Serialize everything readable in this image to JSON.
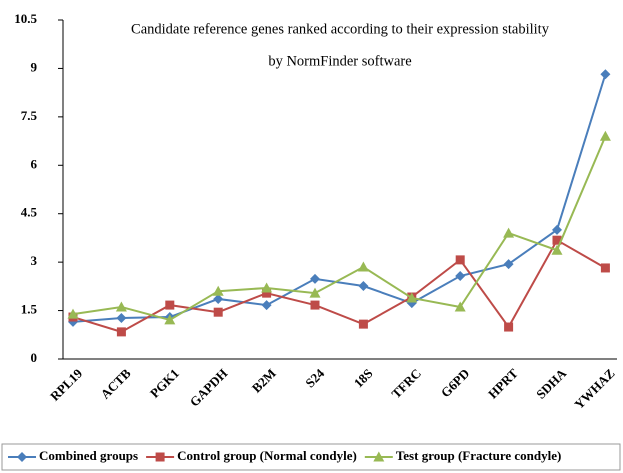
{
  "chart_data": {
    "type": "line",
    "title": [
      "Candidate reference genes ranked according to their expression stability",
      "by NormFinder software"
    ],
    "categories": [
      "RPL19",
      "ACTB",
      "PGK1",
      "GAPDH",
      "B2M",
      "S24",
      "18S",
      "TFRC",
      "G6PD",
      "HPRT",
      "SDHA",
      "YWHAZ"
    ],
    "series": [
      {
        "name": "Combined groups",
        "color": "#4a7ebb",
        "marker": "diamond",
        "values": [
          1.15,
          1.27,
          1.3,
          1.86,
          1.67,
          2.48,
          2.26,
          1.73,
          2.57,
          2.94,
          4.0,
          8.82
        ]
      },
      {
        "name": "Control group (Normal condyle)",
        "color": "#be4b48",
        "marker": "square",
        "values": [
          1.3,
          0.84,
          1.67,
          1.45,
          2.04,
          1.67,
          1.08,
          1.92,
          3.07,
          0.99,
          3.68,
          2.82
        ]
      },
      {
        "name": "Test group (Fracture condyle)",
        "color": "#98b954",
        "marker": "triangle",
        "values": [
          1.39,
          1.61,
          1.21,
          2.1,
          2.2,
          2.04,
          2.85,
          1.89,
          1.61,
          3.9,
          3.37,
          6.9
        ]
      }
    ],
    "ylim": [
      0,
      10.5
    ],
    "yticks": [
      0,
      1.5,
      3,
      4.5,
      6,
      7.5,
      9,
      10.5
    ],
    "grid": false,
    "legend": "bottom"
  }
}
